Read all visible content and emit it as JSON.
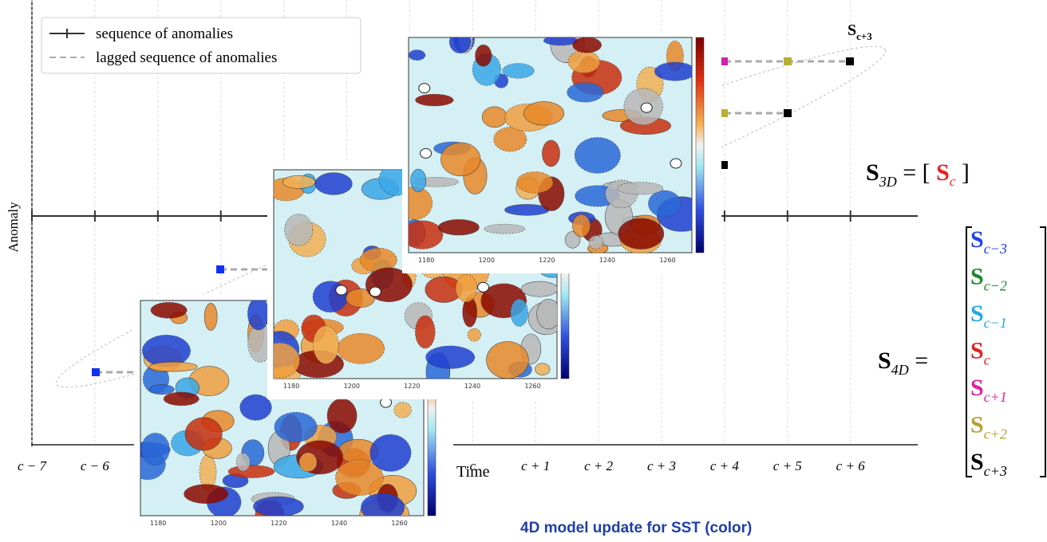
{
  "legend": [
    "sequence of anomalies",
    "lagged sequence of anomalies"
  ],
  "y_axis_label": "Anomaly",
  "x_axis_label": "Time",
  "x_ticks": [
    "c − 7",
    "c − 6",
    "c",
    "c + 1",
    "c + 2",
    "c + 3",
    "c + 4",
    "c + 5",
    "c + 6"
  ],
  "top_label": {
    "symbol": "S",
    "subscript": "c+3"
  },
  "equations": {
    "s3d": {
      "lhs": "S",
      "lhs_sub": "3D",
      "rhs": {
        "symbol": "S",
        "subscript": "c"
      }
    },
    "s4d": {
      "lhs": "S",
      "lhs_sub": "4D",
      "rows": [
        {
          "symbol": "S",
          "subscript": "c−3"
        },
        {
          "symbol": "S",
          "subscript": "c−2"
        },
        {
          "symbol": "S",
          "subscript": "c−1"
        },
        {
          "symbol": "S",
          "subscript": "c"
        },
        {
          "symbol": "S",
          "subscript": "c+1"
        },
        {
          "symbol": "S",
          "subscript": "c+2"
        },
        {
          "symbol": "S",
          "subscript": "c+3"
        }
      ]
    }
  },
  "map_x_ticks": [
    "1180",
    "1200",
    "1220",
    "1240",
    "1260"
  ],
  "caption": "4D model update for SST (color)"
}
